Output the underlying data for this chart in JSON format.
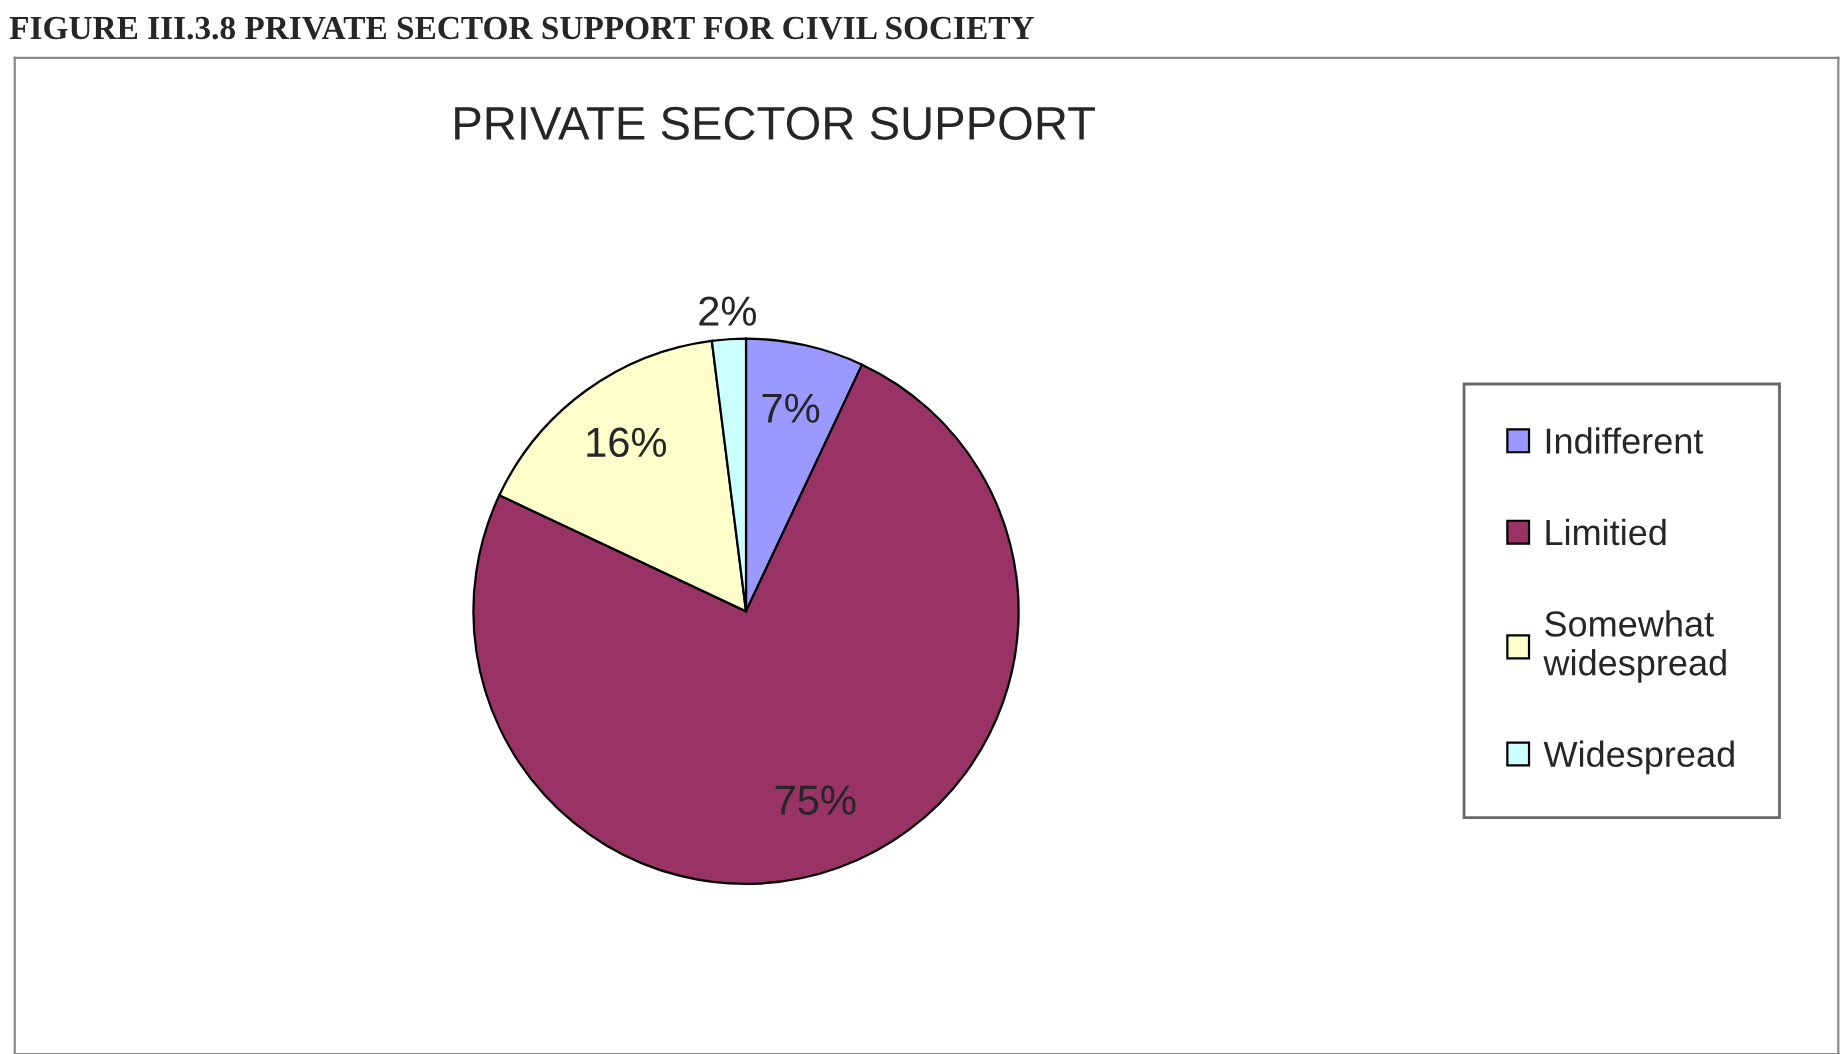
{
  "chart_data": {
    "type": "pie",
    "title": "PRIVATE SECTOR SUPPORT",
    "annotations": [
      "FIGURE III.3.8 PRIVATE SECTOR SUPPORT FOR CIVIL SOCIETY"
    ],
    "categories": [
      "Indifferent",
      "Limitied",
      "Somewhat\nwidespread",
      "Widespread"
    ],
    "values": [
      7,
      75,
      16,
      2
    ],
    "colors": [
      "#9999ff",
      "#993366",
      "#ffffcc",
      "#ccffff"
    ],
    "value_labels": [
      "7%",
      "75%",
      "16%",
      "2%"
    ],
    "legend": "right"
  }
}
